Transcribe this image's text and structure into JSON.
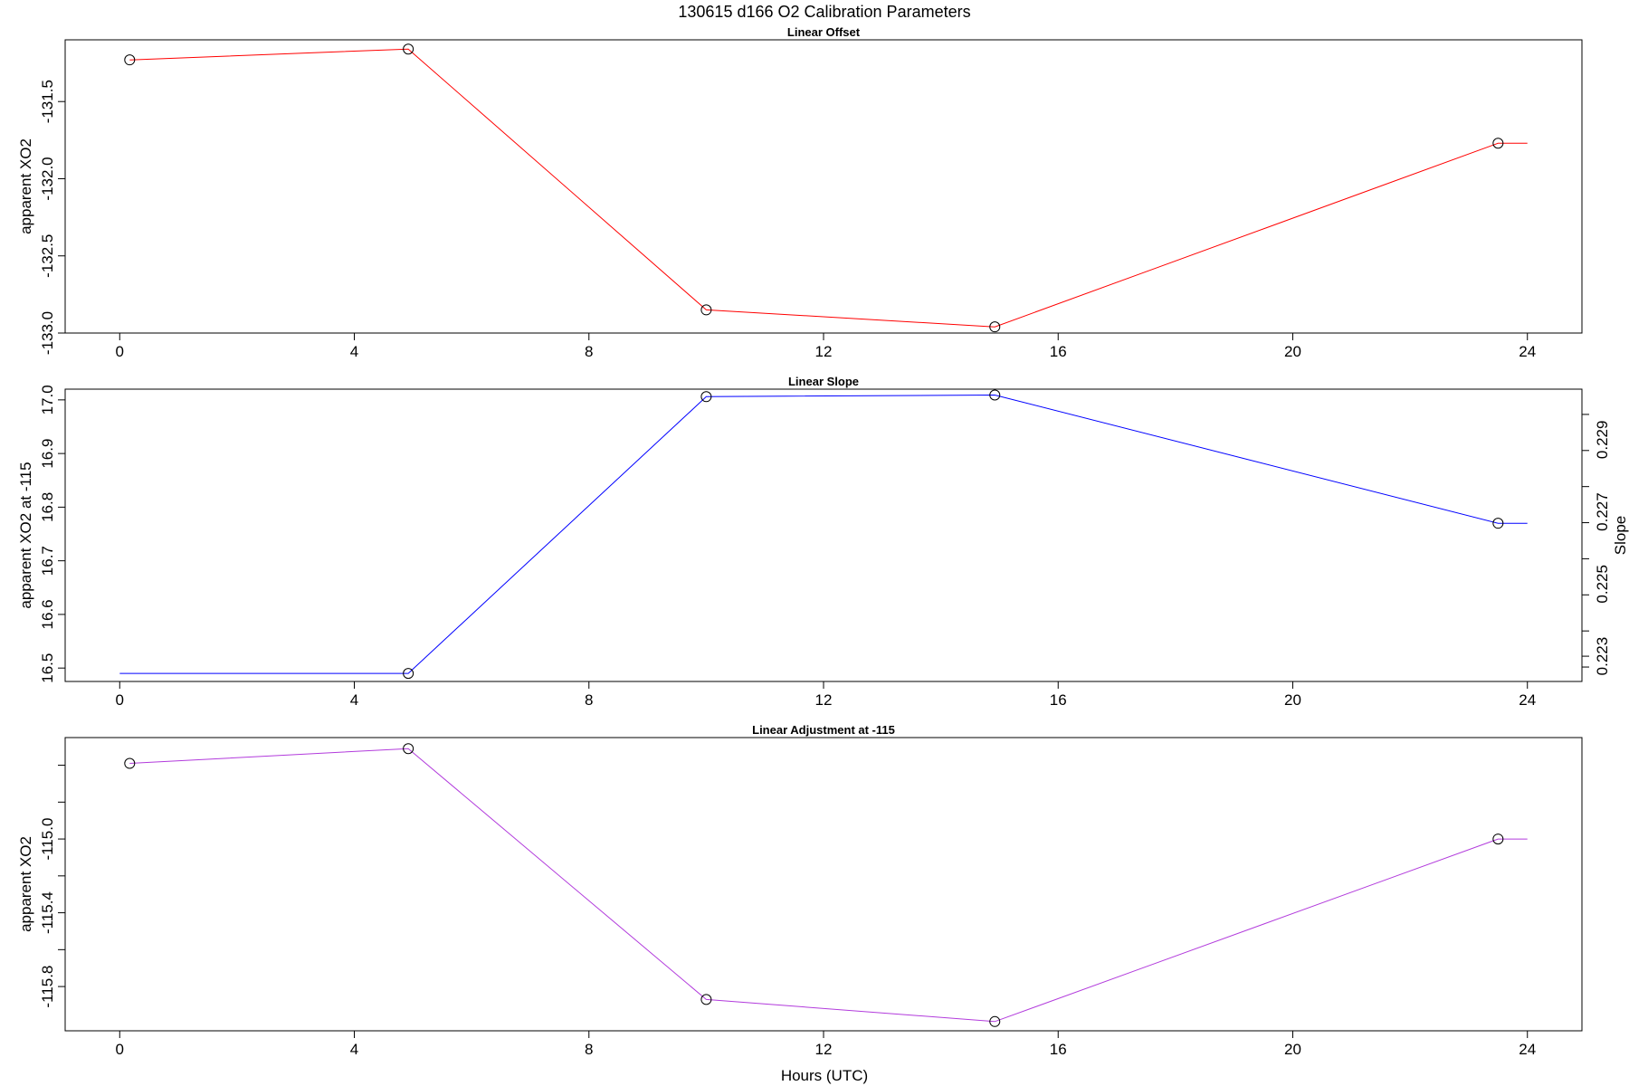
{
  "title": "130615   d166   O2 Calibration Parameters",
  "xlabel": "Hours (UTC)",
  "chart_data": [
    {
      "type": "line",
      "title": "Linear Offset",
      "ylabel": "apparent XO2",
      "color": "#ff0000",
      "marker": "open-circle",
      "x": [
        0.17,
        4.92,
        10.0,
        14.92,
        23.5
      ],
      "y": [
        -131.23,
        -131.16,
        -132.85,
        -132.96,
        -131.77
      ],
      "line_end": [
        24.0,
        -131.77
      ],
      "xlim": [
        -0.93,
        24.93
      ],
      "ylim": [
        -133.0,
        -131.1
      ],
      "xticks": [
        0,
        4,
        8,
        12,
        16,
        20,
        24
      ],
      "yticks": [
        -133.0,
        -132.5,
        -132.0,
        -131.5
      ],
      "ytick_labels": [
        "-133.0",
        "-132.5",
        "-132.0",
        "-131.5"
      ],
      "grid": false
    },
    {
      "type": "line",
      "title": "Linear Slope",
      "ylabel": "apparent XO2 at -115",
      "y2label": "Slope",
      "color": "#0000ff",
      "marker": "open-circle",
      "x": [
        4.92,
        10.0,
        14.92,
        23.5
      ],
      "y": [
        16.49,
        17.006,
        17.009,
        16.77
      ],
      "line_start": [
        0.0,
        16.49
      ],
      "line_end": [
        24.0,
        16.77
      ],
      "xlim": [
        -0.93,
        24.93
      ],
      "ylim": [
        16.475,
        17.02
      ],
      "xticks": [
        0,
        4,
        8,
        12,
        16,
        20,
        24
      ],
      "yticks": [
        16.5,
        16.6,
        16.7,
        16.8,
        16.9,
        17.0
      ],
      "ytick_labels": [
        "16.5",
        "16.6",
        "16.7",
        "16.8",
        "16.9",
        "17.0"
      ],
      "y2lim": [
        0.2221,
        0.2302
      ],
      "y2ticks": [
        0.2225,
        0.2228,
        0.2235,
        0.2245,
        0.2255,
        0.2265,
        0.2275,
        0.2285,
        0.2295
      ],
      "y2tick_labels": [
        "0.223",
        "0.225",
        "0.227",
        "0.229"
      ],
      "y2labeled_ticks": [
        0.2228,
        0.2248,
        0.2268,
        0.2288
      ],
      "grid": false
    },
    {
      "type": "line",
      "title": "Linear Adjustment at -115",
      "ylabel": "apparent XO2",
      "color": "#b23bdc",
      "marker": "open-circle",
      "x": [
        0.17,
        4.92,
        10.0,
        14.92,
        23.5
      ],
      "y": [
        -114.59,
        -114.51,
        -115.87,
        -115.99,
        -115.0
      ],
      "line_end": [
        24.0,
        -115.0
      ],
      "xlim": [
        -0.93,
        24.93
      ],
      "ylim": [
        -116.04,
        -114.45
      ],
      "xticks": [
        0,
        4,
        8,
        12,
        16,
        20,
        24
      ],
      "yticks": [
        -115.8,
        -115.6,
        -115.4,
        -115.2,
        -115.0,
        -114.8,
        -114.6
      ],
      "ytick_labels": [
        "-115.8",
        "-115.4",
        "-115.0"
      ],
      "ylabeled_ticks": [
        -115.8,
        -115.4,
        -115.0
      ],
      "grid": false
    }
  ]
}
